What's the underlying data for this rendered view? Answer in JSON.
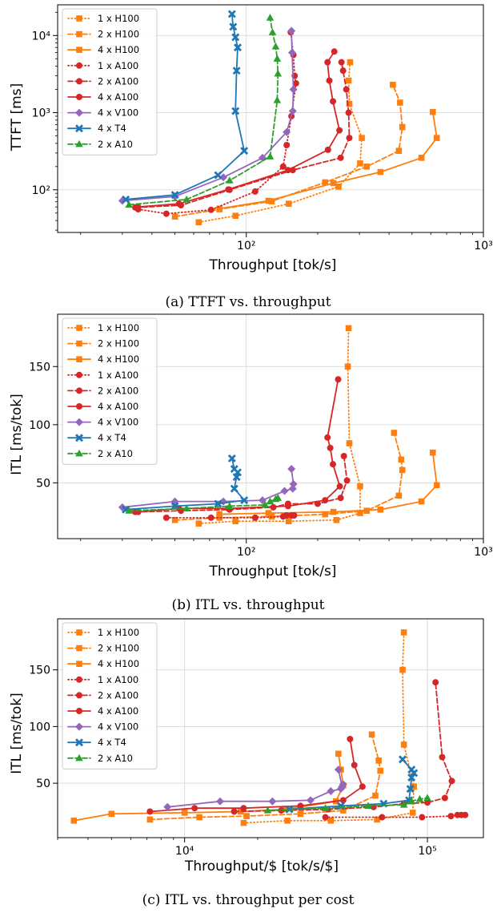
{
  "colors": {
    "H100": "#ff7f0e",
    "A100": "#d62728",
    "V100": "#9467bd",
    "T4": "#1f77b4",
    "A10": "#2ca02c",
    "grid": "#d9d9d9"
  },
  "chart_data": [
    {
      "type": "line",
      "caption": "(a) TTFT vs. throughput",
      "xlabel": "Throughput [tok/s]",
      "ylabel": "TTFT [ms]",
      "xscale": "log",
      "yscale": "log",
      "xlim": [
        16,
        1000
      ],
      "ylim": [
        28,
        25000
      ],
      "xticks": [
        {
          "v": 100,
          "label": "10²"
        },
        {
          "v": 1000,
          "label": "10³"
        }
      ],
      "yticks": [
        {
          "v": 100,
          "label": "10²"
        },
        {
          "v": 1000,
          "label": "10³"
        },
        {
          "v": 10000,
          "label": "10⁴"
        }
      ],
      "legend": "top-left",
      "grid": true,
      "series": [
        {
          "name": "1 x H100",
          "color_key": "H100",
          "dash": "dotted",
          "marker": "square",
          "x": [
            63,
            90,
            151,
            245,
            302,
            307,
            272,
            270,
            274
          ],
          "y": [
            38,
            46,
            66,
            110,
            220,
            470,
            1300,
            2600,
            4500
          ]
        },
        {
          "name": "2 x H100",
          "color_key": "H100",
          "dash": "dashed",
          "marker": "square",
          "x": [
            50,
            77,
            128,
            215,
            322,
            440,
            455,
            445,
            415
          ],
          "y": [
            45,
            56,
            71,
            125,
            200,
            320,
            650,
            1350,
            2300
          ]
        },
        {
          "name": "4 x H100",
          "color_key": "H100",
          "dash": "solid",
          "marker": "square",
          "x": [
            77,
            124,
            233,
            368,
            548,
            636,
            612
          ],
          "y": [
            57,
            72,
            122,
            170,
            260,
            470,
            1020
          ]
        },
        {
          "name": "1 x A100",
          "color_key": "A100",
          "dash": "dotted",
          "marker": "circle",
          "x": [
            35,
            46,
            71,
            109,
            143,
            148,
            155,
            162,
            160,
            158,
            154
          ],
          "y": [
            56,
            49,
            55,
            95,
            200,
            380,
            900,
            2400,
            3000,
            5600,
            11000
          ]
        },
        {
          "name": "2 x A100",
          "color_key": "A100",
          "dash": "dashed",
          "marker": "circle",
          "x": [
            34,
            53,
            85,
            157,
            250,
            272,
            270,
            264,
            256,
            252
          ],
          "y": [
            59,
            63,
            100,
            180,
            260,
            470,
            1000,
            2000,
            3500,
            4500
          ]
        },
        {
          "name": "4 x A100",
          "color_key": "A100",
          "dash": "solid",
          "marker": "circle",
          "x": [
            35,
            52,
            84,
            150,
            221,
            247,
            232,
            224,
            220,
            235
          ],
          "y": [
            60,
            66,
            101,
            180,
            330,
            590,
            1400,
            2600,
            4500,
            6200
          ]
        },
        {
          "name": "4 x V100",
          "color_key": "V100",
          "dash": "solid",
          "marker": "diamond",
          "x": [
            30,
            50,
            80,
            117,
            148,
            157,
            158,
            156,
            155
          ],
          "y": [
            72,
            82,
            145,
            260,
            560,
            1050,
            2000,
            6000,
            11500
          ]
        },
        {
          "name": "4 x T4",
          "color_key": "T4",
          "dash": "solid",
          "marker": "x",
          "x": [
            31,
            50,
            76,
            98,
            90,
            91,
            92,
            90,
            88,
            87
          ],
          "y": [
            75,
            86,
            155,
            320,
            1050,
            3500,
            7000,
            9500,
            13000,
            19000
          ]
        },
        {
          "name": "2 x A10",
          "color_key": "A10",
          "dash": "dashed",
          "marker": "triangle",
          "x": [
            32,
            56,
            85,
            126,
            135,
            136,
            135,
            133,
            129,
            126
          ],
          "y": [
            64,
            75,
            132,
            270,
            1450,
            3200,
            5000,
            7200,
            11000,
            17000
          ]
        }
      ]
    },
    {
      "type": "line",
      "caption": "(b) ITL vs. throughput",
      "xlabel": "Throughput [tok/s]",
      "ylabel": "ITL [ms/tok]",
      "xscale": "log",
      "yscale": "linear",
      "xlim": [
        16,
        1000
      ],
      "ylim": [
        2,
        195
      ],
      "xticks": [
        {
          "v": 100,
          "label": "10²"
        },
        {
          "v": 1000,
          "label": "10³"
        }
      ],
      "yticks": [
        {
          "v": 50,
          "label": "50"
        },
        {
          "v": 100,
          "label": "100"
        },
        {
          "v": 150,
          "label": "150"
        }
      ],
      "legend": "top-left",
      "grid": true,
      "series": [
        {
          "name": "1 x H100",
          "color_key": "H100",
          "dash": "dotted",
          "marker": "square",
          "x": [
            63,
            90,
            151,
            240,
            302,
            302,
            272,
            268,
            270
          ],
          "y": [
            15,
            17,
            17,
            18,
            24,
            47,
            84,
            150,
            183
          ]
        },
        {
          "name": "2 x H100",
          "color_key": "H100",
          "dash": "dashed",
          "marker": "square",
          "x": [
            50,
            77,
            128,
            215,
            322,
            440,
            455,
            450,
            420
          ],
          "y": [
            18,
            20,
            21,
            23,
            26,
            39,
            61,
            70,
            93
          ]
        },
        {
          "name": "4 x H100",
          "color_key": "H100",
          "dash": "solid",
          "marker": "square",
          "x": [
            77,
            124,
            233,
            368,
            548,
            636,
            612
          ],
          "y": [
            23,
            24,
            25,
            27,
            34,
            48,
            76
          ]
        },
        {
          "name": "1 x A100",
          "color_key": "A100",
          "dash": "dotted",
          "marker": "circle",
          "x": [
            46,
            71,
            109,
            143,
            148,
            155,
            159
          ],
          "y": [
            20,
            20,
            20,
            21,
            22,
            22,
            22
          ]
        },
        {
          "name": "2 x A100",
          "color_key": "A100",
          "dash": "dashed",
          "marker": "circle",
          "x": [
            34,
            53,
            85,
            130,
            150,
            200,
            250,
            266,
            258
          ],
          "y": [
            25,
            26,
            27,
            29,
            32,
            32,
            37,
            52,
            73
          ]
        },
        {
          "name": "4 x A100",
          "color_key": "A100",
          "dash": "solid",
          "marker": "circle",
          "x": [
            35,
            52,
            84,
            150,
            215,
            248,
            232,
            226,
            220,
            244
          ],
          "y": [
            25,
            28,
            28,
            30,
            35,
            47,
            66,
            80,
            89,
            139
          ]
        },
        {
          "name": "4 x V100",
          "color_key": "V100",
          "dash": "solid",
          "marker": "diamond",
          "x": [
            30,
            50,
            80,
            117,
            145,
            157,
            158,
            155
          ],
          "y": [
            29,
            34,
            34,
            35,
            43,
            45,
            49,
            62
          ]
        },
        {
          "name": "4 x T4",
          "color_key": "T4",
          "dash": "solid",
          "marker": "x",
          "x": [
            31,
            50,
            76,
            98,
            89,
            91,
            92,
            89,
            87
          ],
          "y": [
            27,
            30,
            32,
            35,
            45,
            55,
            59,
            62,
            71
          ]
        },
        {
          "name": "2 x A10",
          "color_key": "A10",
          "dash": "dashed",
          "marker": "triangle",
          "x": [
            32,
            56,
            85,
            120,
            126,
            133,
            136
          ],
          "y": [
            26,
            28,
            30,
            31,
            34,
            36,
            37
          ]
        }
      ]
    },
    {
      "type": "line",
      "caption": "(c) ITL vs. throughput per cost",
      "xlabel": "Throughput/$ [tok/s/$]",
      "ylabel": "ITL [ms/tok]",
      "xscale": "log",
      "yscale": "linear",
      "xlim": [
        3000,
        170000
      ],
      "ylim": [
        2,
        195
      ],
      "xticks": [
        {
          "v": 10000,
          "label": "10⁴"
        },
        {
          "v": 100000,
          "label": "10⁵"
        }
      ],
      "yticks": [
        {
          "v": 50,
          "label": "50"
        },
        {
          "v": 100,
          "label": "100"
        },
        {
          "v": 150,
          "label": "150"
        }
      ],
      "legend": "top-left",
      "grid": true,
      "series": [
        {
          "name": "1 x H100",
          "color_key": "H100",
          "dash": "dotted",
          "marker": "square",
          "x": [
            17500,
            26500,
            40000,
            62000,
            87000,
            88000,
            80000,
            79000,
            80000
          ],
          "y": [
            15,
            17,
            17,
            18,
            24,
            47,
            84,
            150,
            183
          ]
        },
        {
          "name": "2 x H100",
          "color_key": "H100",
          "dash": "dashed",
          "marker": "square",
          "x": [
            7200,
            11500,
            18000,
            30000,
            45000,
            61000,
            64000,
            63000,
            59000
          ],
          "y": [
            18,
            20,
            21,
            23,
            26,
            39,
            61,
            70,
            93
          ]
        },
        {
          "name": "4 x H100",
          "color_key": "H100",
          "dash": "solid",
          "marker": "square",
          "x": [
            3500,
            5000,
            10000,
            17000,
            26000,
            42000,
            45000,
            44000,
            43000
          ],
          "y": [
            17,
            23,
            24,
            25,
            27,
            34,
            48,
            62,
            76
          ]
        },
        {
          "name": "1 x A100",
          "color_key": "A100",
          "dash": "dotted",
          "marker": "circle",
          "x": [
            38000,
            65000,
            95000,
            125000,
            133000,
            138000,
            143000
          ],
          "y": [
            20,
            20,
            20,
            21,
            22,
            22,
            22
          ]
        },
        {
          "name": "2 x A100",
          "color_key": "A100",
          "dash": "dashed",
          "marker": "circle",
          "x": [
            16000,
            25000,
            39000,
            60000,
            80000,
            100000,
            118000,
            126000,
            115000,
            108000
          ],
          "y": [
            25,
            26,
            27,
            29,
            32,
            33,
            37,
            52,
            73,
            139
          ]
        },
        {
          "name": "4 x A100",
          "color_key": "A100",
          "dash": "solid",
          "marker": "circle",
          "x": [
            7200,
            11000,
            17500,
            30000,
            45000,
            54000,
            50000,
            48000
          ],
          "y": [
            25,
            28,
            28,
            30,
            35,
            47,
            66,
            89
          ]
        },
        {
          "name": "4 x V100",
          "color_key": "V100",
          "dash": "solid",
          "marker": "diamond",
          "x": [
            8500,
            14000,
            23000,
            33000,
            40000,
            44000,
            45000,
            44500,
            43000
          ],
          "y": [
            29,
            34,
            34,
            35,
            43,
            45,
            49,
            47,
            62
          ]
        },
        {
          "name": "4 x T4",
          "color_key": "T4",
          "dash": "solid",
          "marker": "x",
          "x": [
            27000,
            44000,
            66000,
            84000,
            85000,
            86000,
            88000,
            86000,
            79000
          ],
          "y": [
            27,
            30,
            32,
            35,
            45,
            55,
            59,
            62,
            71
          ]
        },
        {
          "name": "2 x A10",
          "color_key": "A10",
          "dash": "dashed",
          "marker": "triangle",
          "x": [
            22000,
            38000,
            57000,
            80000,
            86000,
            93000,
            100000
          ],
          "y": [
            26,
            28,
            30,
            31,
            34,
            36,
            37
          ]
        }
      ]
    }
  ]
}
